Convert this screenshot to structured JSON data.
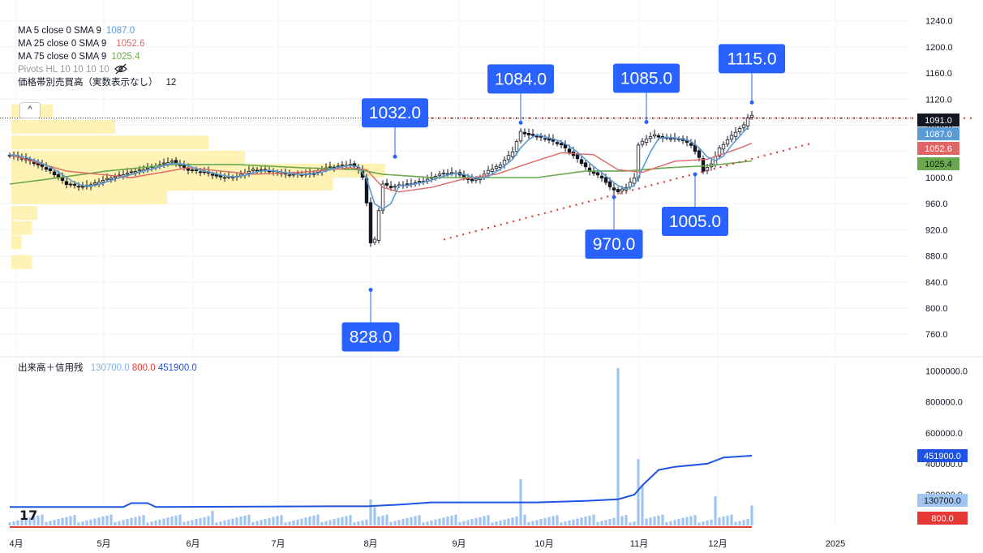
{
  "legend": {
    "ma5_label": "MA 5 close 0 SMA 9",
    "ma5_value": "1087.0",
    "ma25_label": "MA 25 close 0 SMA 9",
    "ma25_value": "1052.6",
    "ma75_label": "MA 75 close 0 SMA 9",
    "ma75_value": "1025.4",
    "pivots_label": "Pivots HL 10 10 10 10",
    "vp_label": "価格帯別売買高（実数表示なし）",
    "vp_value": "12"
  },
  "volume_legend": {
    "label": "出来高＋信用残",
    "v1": "130700.0",
    "v2": "800.0",
    "v3": "451900.0"
  },
  "collapse_symbol": "^",
  "logo": "17",
  "colors": {
    "ma5": "#5b9bd5",
    "ma25": "#e06666",
    "ma75": "#6aa84f",
    "callout": "#2962ff",
    "volume": "#9fc5f0",
    "margin": "#1e53e5",
    "short": "#e53935",
    "trend": "#e53935",
    "candle": "#131722"
  },
  "chart_data": [
    {
      "type": "candlestick",
      "price_axis": {
        "ticks": [
          760,
          800,
          840,
          880,
          920,
          960,
          1000,
          1040,
          1080,
          1120,
          1160,
          1200,
          1240
        ],
        "ylim": [
          728,
          1262
        ]
      },
      "x_axis": {
        "ticks": [
          "4月",
          "5月",
          "6月",
          "7月",
          "8月",
          "9月",
          "10月",
          "11月",
          "12月",
          "2025"
        ]
      },
      "series_path_keypoints": [
        [
          0,
          1035
        ],
        [
          5,
          1025
        ],
        [
          10,
          1010
        ],
        [
          14,
          990
        ],
        [
          18,
          985
        ],
        [
          24,
          998
        ],
        [
          30,
          1008
        ],
        [
          36,
          1018
        ],
        [
          40,
          1025
        ],
        [
          44,
          1012
        ],
        [
          48,
          1008
        ],
        [
          52,
          1000
        ],
        [
          56,
          1002
        ],
        [
          60,
          1012
        ],
        [
          64,
          1010
        ],
        [
          68,
          1005
        ],
        [
          74,
          1005
        ],
        [
          78,
          1015
        ],
        [
          84,
          1020
        ],
        [
          86,
          1012
        ],
        [
          87,
          1000
        ],
        [
          88,
          962
        ],
        [
          89,
          900
        ],
        [
          90,
          905
        ],
        [
          91,
          950
        ],
        [
          92,
          990
        ],
        [
          94,
          985
        ],
        [
          96,
          988
        ],
        [
          98,
          990
        ],
        [
          102,
          995
        ],
        [
          106,
          1005
        ],
        [
          110,
          1008
        ],
        [
          112,
          1000
        ],
        [
          114,
          995
        ],
        [
          116,
          1000
        ],
        [
          118,
          1010
        ],
        [
          121,
          1020
        ],
        [
          124,
          1040
        ],
        [
          126,
          1070
        ],
        [
          128,
          1065
        ],
        [
          132,
          1060
        ],
        [
          136,
          1050
        ],
        [
          140,
          1028
        ],
        [
          143,
          1010
        ],
        [
          146,
          1000
        ],
        [
          148,
          985
        ],
        [
          150,
          978
        ],
        [
          152,
          985
        ],
        [
          154,
          1000
        ],
        [
          155,
          1050
        ],
        [
          157,
          1060
        ],
        [
          159,
          1065
        ],
        [
          161,
          1060
        ],
        [
          165,
          1060
        ],
        [
          168,
          1050
        ],
        [
          170,
          1030
        ],
        [
          171,
          1010
        ],
        [
          173,
          1020
        ],
        [
          175,
          1045
        ],
        [
          177,
          1058
        ],
        [
          179,
          1070
        ],
        [
          181,
          1080
        ],
        [
          182,
          1092
        ],
        [
          183,
          1095
        ]
      ],
      "ma25_keypoints": [
        [
          0,
          1035
        ],
        [
          14,
          1010
        ],
        [
          30,
          1000
        ],
        [
          44,
          1015
        ],
        [
          60,
          1005
        ],
        [
          72,
          1008
        ],
        [
          84,
          1015
        ],
        [
          88,
          1012
        ],
        [
          92,
          985
        ],
        [
          96,
          978
        ],
        [
          104,
          985
        ],
        [
          112,
          998
        ],
        [
          120,
          1005
        ],
        [
          128,
          1022
        ],
        [
          136,
          1038
        ],
        [
          144,
          1035
        ],
        [
          150,
          1012
        ],
        [
          156,
          1008
        ],
        [
          164,
          1025
        ],
        [
          172,
          1028
        ],
        [
          180,
          1045
        ],
        [
          183,
          1052.6
        ]
      ],
      "ma75_keypoints": [
        [
          0,
          990
        ],
        [
          10,
          998
        ],
        [
          24,
          1010
        ],
        [
          40,
          1020
        ],
        [
          56,
          1020
        ],
        [
          72,
          1015
        ],
        [
          86,
          1012
        ],
        [
          92,
          1005
        ],
        [
          104,
          1000
        ],
        [
          116,
          1000
        ],
        [
          130,
          1000
        ],
        [
          142,
          1010
        ],
        [
          152,
          1010
        ],
        [
          162,
          1015
        ],
        [
          172,
          1018
        ],
        [
          183,
          1025.4
        ]
      ],
      "resistance_line": {
        "from": [
          104,
          1091
        ],
        "to": [
          222,
          1091
        ]
      },
      "support_line": {
        "from": [
          107,
          905
        ],
        "to": [
          198,
          1053
        ]
      },
      "current_price_line": 1091.0,
      "price_labels": [
        {
          "text": "1091.0",
          "value": 1091.0,
          "kind": "price"
        },
        {
          "text": "1087.0",
          "value": 1087.0,
          "kind": "ma5"
        },
        {
          "text": "1052.6",
          "value": 1052.6,
          "kind": "ma25"
        },
        {
          "text": "1025.4",
          "value": 1025.4,
          "kind": "ma75"
        }
      ],
      "pivot_callouts": [
        {
          "text": "828.0",
          "x": 89,
          "value": 828.0,
          "side": "below"
        },
        {
          "text": "1032.0",
          "x": 95,
          "value": 1032.0,
          "side": "above"
        },
        {
          "text": "1084.0",
          "x": 126,
          "value": 1084.0,
          "side": "above"
        },
        {
          "text": "970.0",
          "x": 149,
          "value": 970.0,
          "side": "below"
        },
        {
          "text": "1085.0",
          "x": 157,
          "value": 1085.0,
          "side": "above"
        },
        {
          "text": "1005.0",
          "x": 169,
          "value": 1005.0,
          "side": "below"
        },
        {
          "text": "1115.0",
          "x": 183,
          "value": 1115.0,
          "side": "above"
        }
      ],
      "volume_profile": [
        {
          "price": 1101,
          "relative": 0.08
        },
        {
          "price": 1077,
          "relative": 0.2
        },
        {
          "price": 1053,
          "relative": 0.38
        },
        {
          "price": 1030,
          "relative": 0.45
        },
        {
          "price": 1010,
          "relative": 0.72
        },
        {
          "price": 990,
          "relative": 0.62
        },
        {
          "price": 969,
          "relative": 0.3
        },
        {
          "price": 945,
          "relative": 0.05
        },
        {
          "price": 922,
          "relative": 0.04
        },
        {
          "price": 900,
          "relative": 0.02
        },
        {
          "price": 870,
          "relative": 0.04
        }
      ]
    },
    {
      "type": "bar",
      "volume_axis": {
        "ticks": [
          0,
          200000,
          400000,
          600000,
          800000,
          1000000
        ],
        "tick_labels": [
          "",
          "200000.0",
          "400000.0",
          "600000.0",
          "800000.0",
          "1000000.0"
        ],
        "ylim": [
          -20000,
          1050000
        ]
      },
      "volume_spikes": [
        {
          "x": 50,
          "value": 95000
        },
        {
          "x": 89,
          "value": 170000
        },
        {
          "x": 90,
          "value": 120000
        },
        {
          "x": 126,
          "value": 300000
        },
        {
          "x": 150,
          "value": 1020000
        },
        {
          "x": 155,
          "value": 430000
        },
        {
          "x": 156,
          "value": 260000
        },
        {
          "x": 174,
          "value": 190000
        },
        {
          "x": 183,
          "value": 130700
        }
      ],
      "margin_line_keypoints": [
        [
          0,
          120000
        ],
        [
          28,
          120000
        ],
        [
          30,
          145000
        ],
        [
          34,
          145000
        ],
        [
          36,
          120000
        ],
        [
          78,
          125000
        ],
        [
          88,
          125000
        ],
        [
          96,
          135000
        ],
        [
          104,
          150000
        ],
        [
          130,
          150000
        ],
        [
          142,
          160000
        ],
        [
          150,
          170000
        ],
        [
          154,
          200000
        ],
        [
          156,
          260000
        ],
        [
          160,
          360000
        ],
        [
          164,
          380000
        ],
        [
          172,
          400000
        ],
        [
          176,
          440000
        ],
        [
          183,
          451900
        ]
      ],
      "short_value": 800.0,
      "price_labels": [
        {
          "text": "451900.0",
          "value": 451900,
          "kind": "margin"
        },
        {
          "text": "130700.0",
          "value": 130700,
          "kind": "volume"
        },
        {
          "text": "800.0",
          "value": 800,
          "kind": "short"
        }
      ]
    }
  ]
}
